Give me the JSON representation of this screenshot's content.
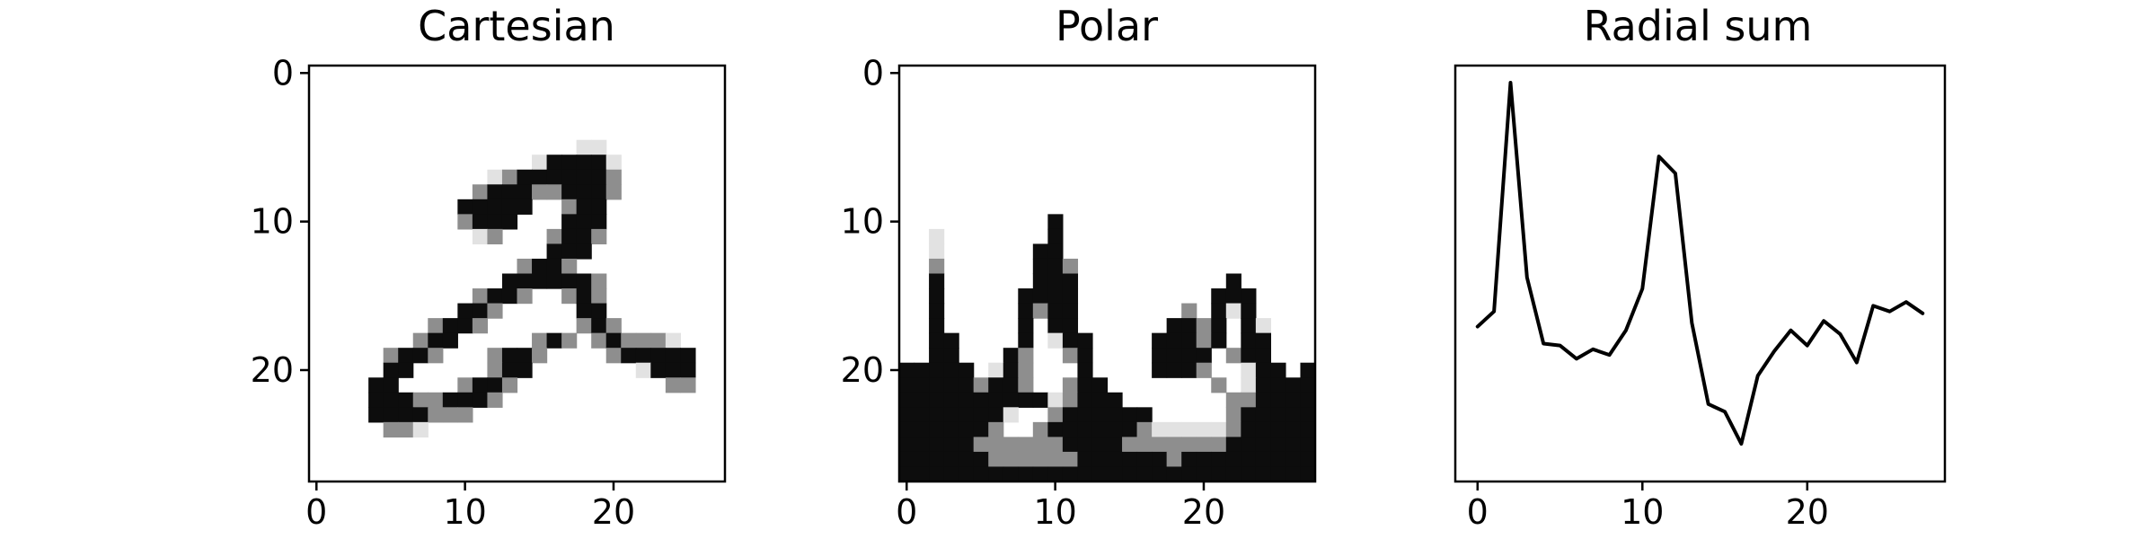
{
  "chart_data": [
    {
      "type": "heatmap",
      "title": "Cartesian",
      "xlabel": "",
      "ylabel": "",
      "xlim": [
        -0.5,
        27.5
      ],
      "ylim": [
        27.5,
        -0.5
      ],
      "xticks": [
        0,
        10,
        20
      ],
      "yticks": [
        0,
        10,
        20
      ],
      "grid": false,
      "colormap": "gray_r",
      "rows": [
        "............................",
        "............................",
        "............................",
        "............................",
        "............................",
        "..................--........",
        "...............-####-.......",
        "............-+######+.......",
        "...........+###++###+.......",
        "..........#####..+##........",
        "..........+###...###........",
        "...........-+...+##+........",
        "................###.........",
        "..............+##+..........",
        ".............######+........",
        "...........+##+..+#+........",
        "..........##+.....##........",
        "........+##+......+#+.......",
        ".......+##.....+#+.+#+++-...",
        ".....+##+...+##+....+#####..",
        ".....##.....+##.......-###..",
        "....##....+##+..........++..",
        "....###++###+...............",
        "....####+++.................",
        ".....++-....................",
        "............................",
        "............................",
        "............................"
      ]
    },
    {
      "type": "heatmap",
      "title": "Polar",
      "xlabel": "",
      "ylabel": "",
      "xlim": [
        -0.5,
        27.5
      ],
      "ylim": [
        27.5,
        -0.5
      ],
      "xticks": [
        0,
        10,
        20
      ],
      "yticks": [
        0,
        10,
        20
      ],
      "grid": false,
      "colormap": "gray_r",
      "rows": [
        "............................",
        "............................",
        "............................",
        "............................",
        "............................",
        "............................",
        "............................",
        "............................",
        "............................",
        "............................",
        "..........#.................",
        "..-.......#.................",
        "..-......##.................",
        "..+......##+................",
        "..#......###..........#.....",
        "..#.....####.........###....",
        "..#.....#+##.......+.#-#....",
        "..#.....#.##......##+#.#-...",
        "..##....#.-##....###+#.##...",
        "..##...#+..+#....####.+##...",
        "#####.-#+...#....###+..-##.#",
        "#####+##+..+##.......+.-####",
        "##########-+###.......++####",
        "#######-..+######.....+#####",
        "######+..+######+-----+#####",
        "#####++++++####+++++++######",
        "######++++++######+#########",
        "############################"
      ]
    },
    {
      "type": "line",
      "title": "Radial sum",
      "xlabel": "",
      "ylabel": "",
      "xlim": [
        -1.35,
        28.35
      ],
      "xticks": [
        0,
        10,
        20
      ],
      "yticks": [],
      "grid": false,
      "x": [
        0,
        1,
        2,
        3,
        4,
        5,
        6,
        7,
        8,
        9,
        10,
        11,
        12,
        13,
        14,
        15,
        16,
        17,
        18,
        19,
        20,
        21,
        22,
        23,
        24,
        25,
        26,
        27
      ],
      "series": [
        {
          "values": [
            0.355,
            0.395,
            1.0,
            0.485,
            0.31,
            0.305,
            0.27,
            0.295,
            0.28,
            0.345,
            0.455,
            0.805,
            0.76,
            0.365,
            0.15,
            0.13,
            0.045,
            0.225,
            0.29,
            0.345,
            0.305,
            0.37,
            0.335,
            0.26,
            0.41,
            0.395,
            0.42,
            0.39
          ],
          "color": "#000000"
        }
      ]
    }
  ]
}
